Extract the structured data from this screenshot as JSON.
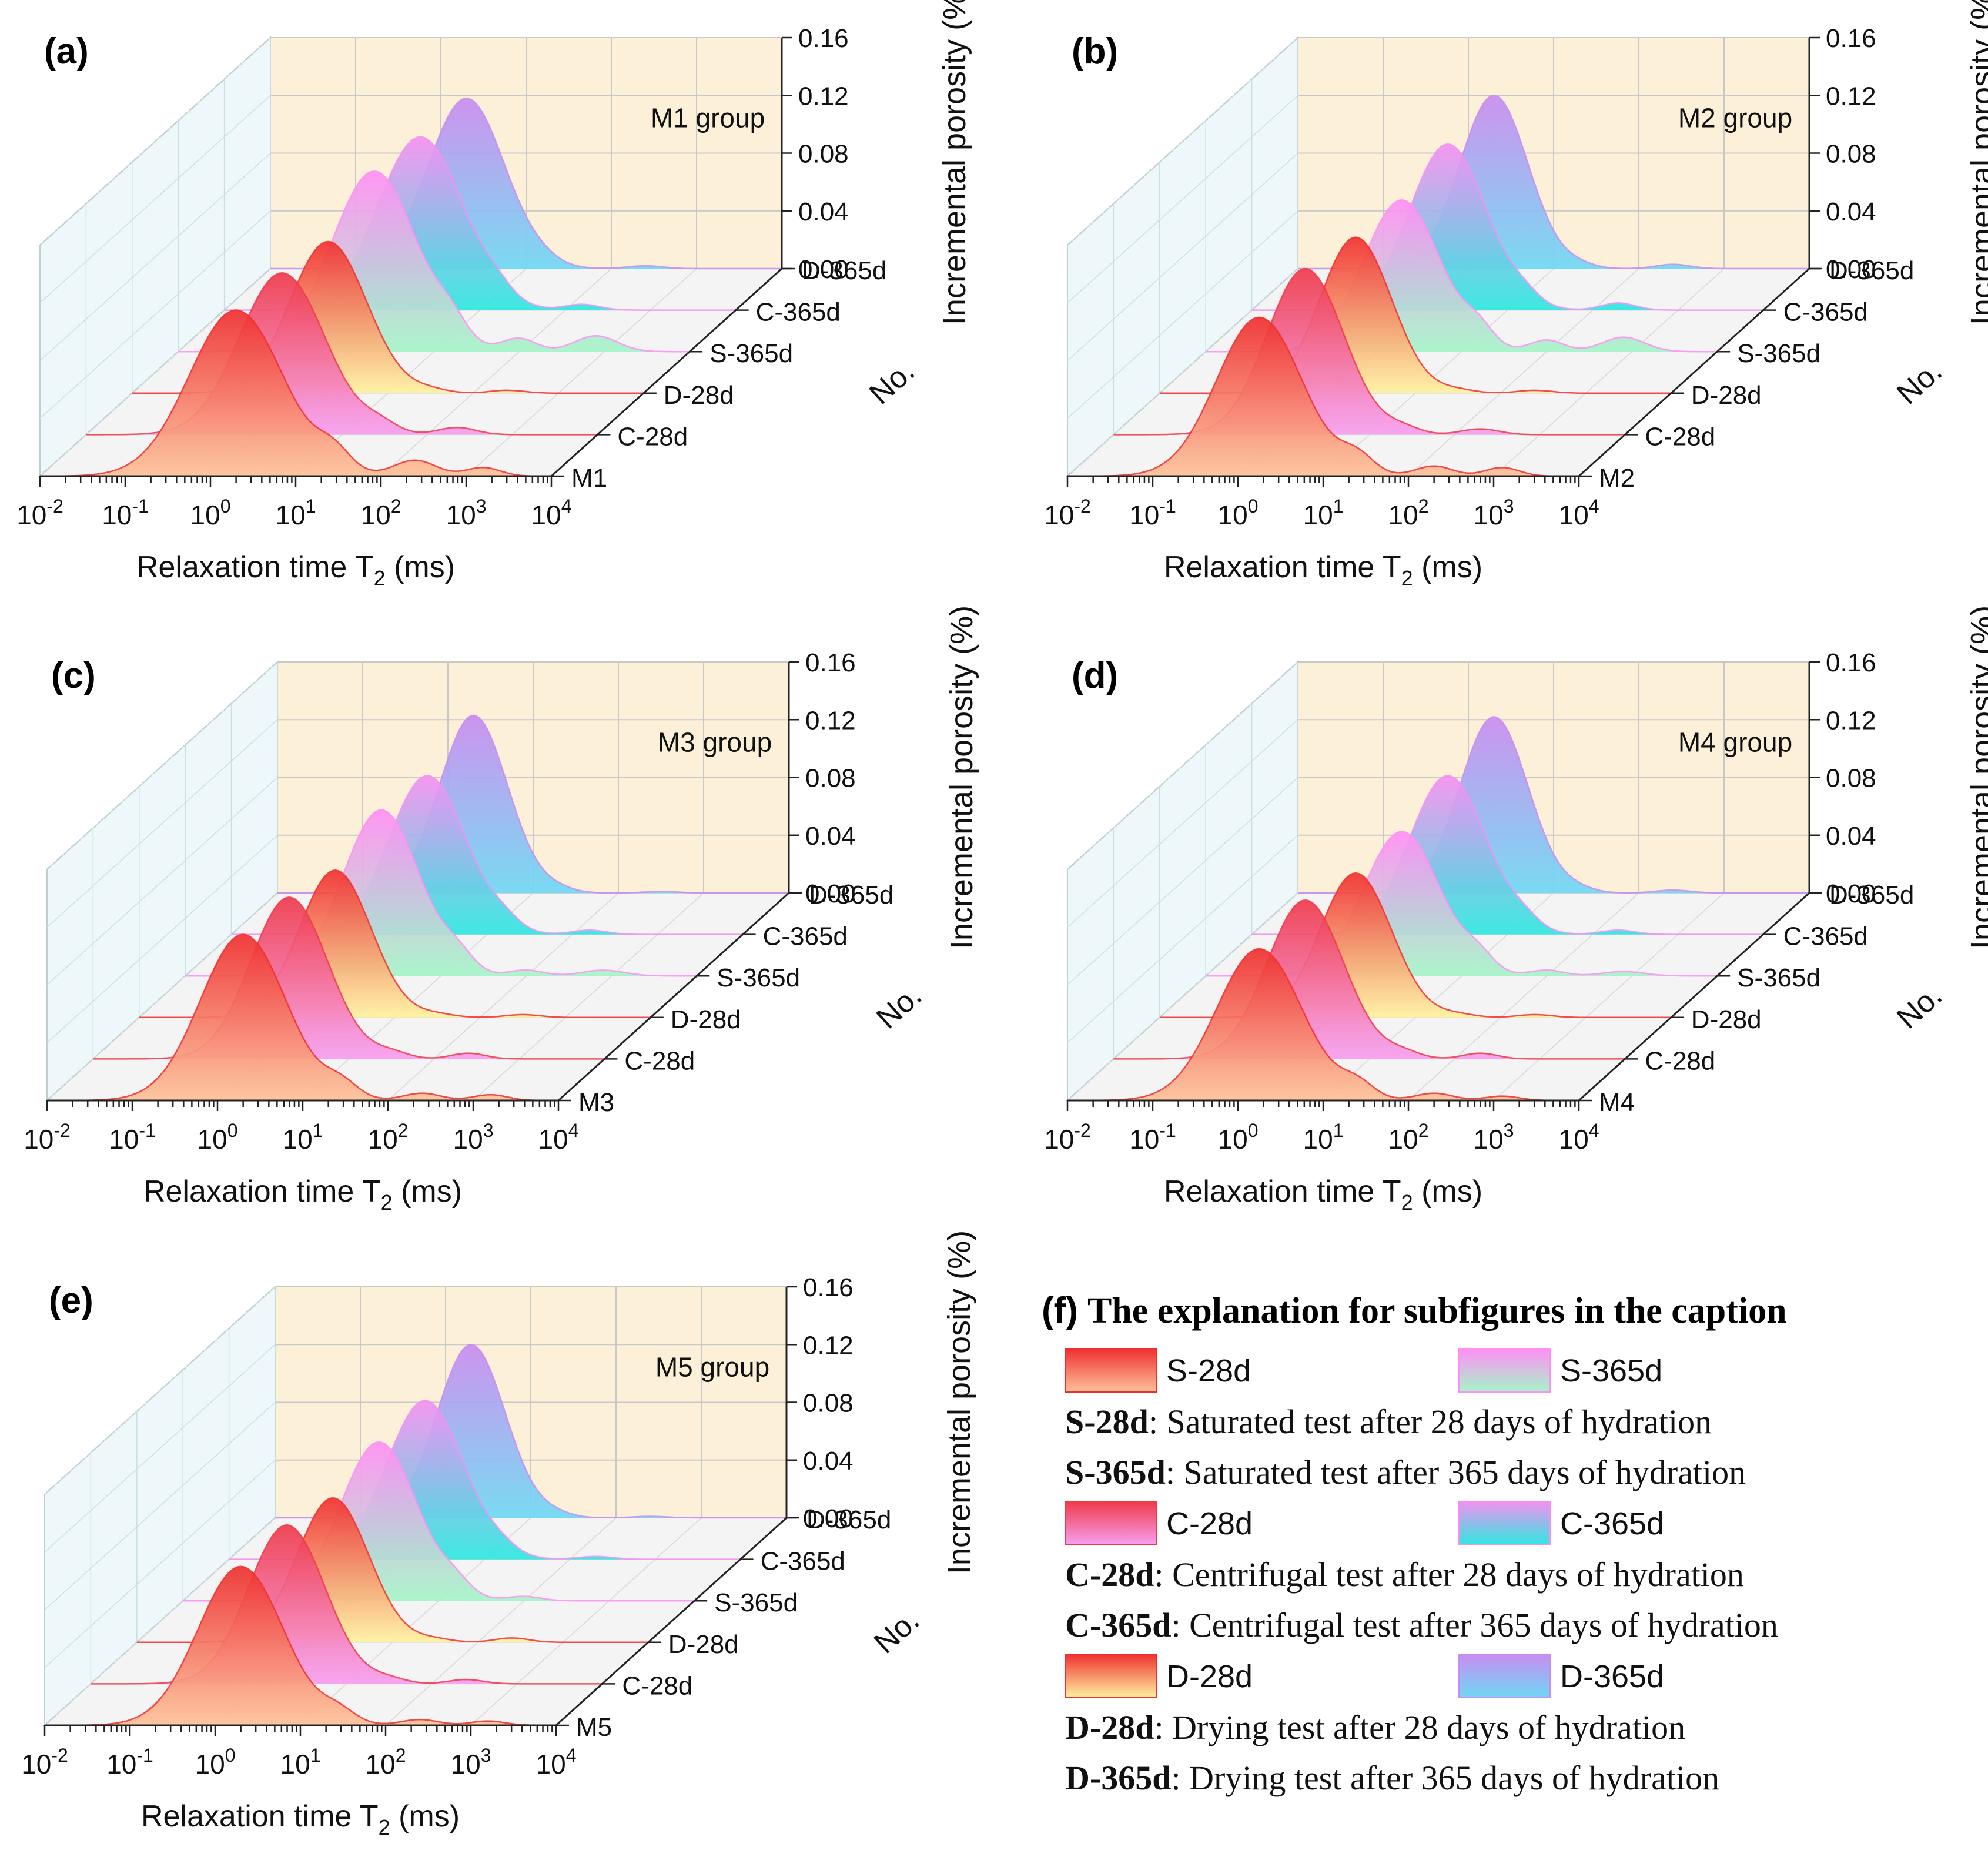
{
  "chart_data": [
    {
      "type": "3d-waterfall",
      "panel_label": "(a)",
      "group_label": "M1 group",
      "xlabel_main": "Relaxation time T",
      "xlabel_sub": "2",
      "xlabel_unit": " (ms)",
      "ylabel": "Incremental porosity (%)",
      "depth_label": "No.",
      "x_ticks": [
        {
          "b": "10",
          "e": "-2"
        },
        {
          "b": "10",
          "e": "-1"
        },
        {
          "b": "10",
          "e": "0"
        },
        {
          "b": "10",
          "e": "1"
        },
        {
          "b": "10",
          "e": "2"
        },
        {
          "b": "10",
          "e": "3"
        },
        {
          "b": "10",
          "e": "4"
        }
      ],
      "xlim_log10": [
        -2,
        4
      ],
      "y_ticks": [
        "0.00",
        "0.04",
        "0.08",
        "0.12",
        "0.16"
      ],
      "ylim": [
        0,
        0.16
      ],
      "depth_ticks": [
        "M1",
        "C-28d",
        "D-28d",
        "S-365d",
        "C-365d",
        "D-365d"
      ],
      "series": [
        {
          "name": "S-28d",
          "peaks": [
            [
              0.3,
              0.55,
              0.115
            ],
            [
              1.45,
              0.2,
              0.013
            ],
            [
              2.4,
              0.25,
              0.011
            ],
            [
              3.2,
              0.2,
              0.006
            ]
          ]
        },
        {
          "name": "C-28d",
          "peaks": [
            [
              0.3,
              0.5,
              0.112
            ],
            [
              1.45,
              0.2,
              0.006
            ],
            [
              2.35,
              0.22,
              0.005
            ]
          ]
        },
        {
          "name": "D-28d",
          "peaks": [
            [
              0.3,
              0.45,
              0.105
            ],
            [
              1.5,
              0.2,
              0.002
            ],
            [
              2.4,
              0.2,
              0.002
            ]
          ]
        },
        {
          "name": "S-365d",
          "peaks": [
            [
              0.3,
              0.5,
              0.125
            ],
            [
              1.2,
              0.18,
              0.012
            ],
            [
              2.0,
              0.2,
              0.009
            ],
            [
              2.9,
              0.25,
              0.011
            ]
          ]
        },
        {
          "name": "C-365d",
          "peaks": [
            [
              0.3,
              0.5,
              0.12
            ],
            [
              1.2,
              0.18,
              0.006
            ],
            [
              2.2,
              0.2,
              0.004
            ]
          ]
        },
        {
          "name": "D-365d",
          "peaks": [
            [
              0.3,
              0.45,
              0.118
            ],
            [
              1.2,
              0.18,
              0.002
            ],
            [
              2.4,
              0.2,
              0.002
            ]
          ]
        }
      ]
    },
    {
      "type": "3d-waterfall",
      "panel_label": "(b)",
      "group_label": "M2 group",
      "xlabel_main": "Relaxation time T",
      "xlabel_sub": "2",
      "xlabel_unit": " (ms)",
      "ylabel": "Incremental porosity (%)",
      "depth_label": "No.",
      "x_ticks": [
        {
          "b": "10",
          "e": "-2"
        },
        {
          "b": "10",
          "e": "-1"
        },
        {
          "b": "10",
          "e": "0"
        },
        {
          "b": "10",
          "e": "1"
        },
        {
          "b": "10",
          "e": "2"
        },
        {
          "b": "10",
          "e": "3"
        },
        {
          "b": "10",
          "e": "4"
        }
      ],
      "xlim_log10": [
        -2,
        4
      ],
      "y_ticks": [
        "0.00",
        "0.04",
        "0.08",
        "0.12",
        "0.16"
      ],
      "ylim": [
        0,
        0.16
      ],
      "depth_ticks": [
        "M2",
        "C-28d",
        "D-28d",
        "S-365d",
        "C-365d",
        "D-365d"
      ],
      "series": [
        {
          "name": "S-28d",
          "peaks": [
            [
              0.25,
              0.5,
              0.11
            ],
            [
              1.4,
              0.2,
              0.012
            ],
            [
              2.3,
              0.22,
              0.007
            ],
            [
              3.1,
              0.2,
              0.006
            ]
          ]
        },
        {
          "name": "C-28d",
          "peaks": [
            [
              0.25,
              0.45,
              0.115
            ],
            [
              1.4,
              0.2,
              0.004
            ],
            [
              2.3,
              0.22,
              0.004
            ]
          ]
        },
        {
          "name": "D-28d",
          "peaks": [
            [
              0.3,
              0.42,
              0.108
            ],
            [
              1.5,
              0.2,
              0.002
            ],
            [
              2.4,
              0.2,
              0.002
            ]
          ]
        },
        {
          "name": "S-365d",
          "peaks": [
            [
              0.3,
              0.45,
              0.105
            ],
            [
              1.2,
              0.18,
              0.012
            ],
            [
              2.0,
              0.2,
              0.008
            ],
            [
              2.9,
              0.25,
              0.01
            ]
          ]
        },
        {
          "name": "C-365d",
          "peaks": [
            [
              0.3,
              0.45,
              0.115
            ],
            [
              1.2,
              0.18,
              0.006
            ],
            [
              2.3,
              0.2,
              0.005
            ]
          ]
        },
        {
          "name": "D-365d",
          "peaks": [
            [
              0.3,
              0.4,
              0.12
            ],
            [
              1.3,
              0.18,
              0.002
            ],
            [
              2.4,
              0.2,
              0.003
            ]
          ]
        }
      ]
    },
    {
      "type": "3d-waterfall",
      "panel_label": "(c)",
      "group_label": "M3 group",
      "xlabel_main": "Relaxation time T",
      "xlabel_sub": "2",
      "xlabel_unit": " (ms)",
      "ylabel": "Incremental porosity (%)",
      "depth_label": "No.",
      "x_ticks": [
        {
          "b": "10",
          "e": "-2"
        },
        {
          "b": "10",
          "e": "-1"
        },
        {
          "b": "10",
          "e": "0"
        },
        {
          "b": "10",
          "e": "1"
        },
        {
          "b": "10",
          "e": "2"
        },
        {
          "b": "10",
          "e": "3"
        },
        {
          "b": "10",
          "e": "4"
        }
      ],
      "xlim_log10": [
        -2,
        4
      ],
      "y_ticks": [
        "0.00",
        "0.04",
        "0.08",
        "0.12",
        "0.16"
      ],
      "ylim": [
        0,
        0.16
      ],
      "depth_ticks": [
        "M3",
        "C-28d",
        "D-28d",
        "S-365d",
        "C-365d",
        "D-365d"
      ],
      "series": [
        {
          "name": "S-28d",
          "peaks": [
            [
              0.3,
              0.5,
              0.115
            ],
            [
              1.45,
              0.2,
              0.01
            ],
            [
              2.4,
              0.22,
              0.005
            ],
            [
              3.2,
              0.2,
              0.004
            ]
          ]
        },
        {
          "name": "C-28d",
          "peaks": [
            [
              0.3,
              0.45,
              0.112
            ],
            [
              1.5,
              0.2,
              0.004
            ],
            [
              2.4,
              0.2,
              0.004
            ]
          ]
        },
        {
          "name": "D-28d",
          "peaks": [
            [
              0.3,
              0.42,
              0.102
            ],
            [
              1.5,
              0.2,
              0.002
            ],
            [
              2.5,
              0.2,
              0.002
            ]
          ]
        },
        {
          "name": "S-365d",
          "peaks": [
            [
              0.3,
              0.45,
              0.115
            ],
            [
              1.2,
              0.18,
              0.01
            ],
            [
              2.0,
              0.2,
              0.004
            ],
            [
              2.9,
              0.25,
              0.004
            ]
          ]
        },
        {
          "name": "C-365d",
          "peaks": [
            [
              0.3,
              0.45,
              0.11
            ],
            [
              1.2,
              0.18,
              0.006
            ],
            [
              2.2,
              0.2,
              0.003
            ]
          ]
        },
        {
          "name": "D-365d",
          "peaks": [
            [
              0.3,
              0.4,
              0.123
            ],
            [
              1.3,
              0.18,
              0.002
            ],
            [
              2.5,
              0.2,
              0.001
            ]
          ]
        }
      ]
    },
    {
      "type": "3d-waterfall",
      "panel_label": "(d)",
      "group_label": "M4 group",
      "xlabel_main": "Relaxation time T",
      "xlabel_sub": "2",
      "xlabel_unit": " (ms)",
      "ylabel": "Incremental porosity (%)",
      "depth_label": "No.",
      "x_ticks": [
        {
          "b": "10",
          "e": "-2"
        },
        {
          "b": "10",
          "e": "-1"
        },
        {
          "b": "10",
          "e": "0"
        },
        {
          "b": "10",
          "e": "1"
        },
        {
          "b": "10",
          "e": "2"
        },
        {
          "b": "10",
          "e": "3"
        },
        {
          "b": "10",
          "e": "4"
        }
      ],
      "xlim_log10": [
        -2,
        4
      ],
      "y_ticks": [
        "0.00",
        "0.04",
        "0.08",
        "0.12",
        "0.16"
      ],
      "ylim": [
        0,
        0.16
      ],
      "depth_ticks": [
        "M4",
        "C-28d",
        "D-28d",
        "S-365d",
        "C-365d",
        "D-365d"
      ],
      "series": [
        {
          "name": "S-28d",
          "peaks": [
            [
              0.25,
              0.5,
              0.105
            ],
            [
              1.4,
              0.2,
              0.01
            ],
            [
              2.3,
              0.22,
              0.005
            ],
            [
              3.1,
              0.2,
              0.003
            ]
          ]
        },
        {
          "name": "C-28d",
          "peaks": [
            [
              0.25,
              0.45,
              0.11
            ],
            [
              1.4,
              0.2,
              0.004
            ],
            [
              2.3,
              0.2,
              0.004
            ]
          ]
        },
        {
          "name": "D-28d",
          "peaks": [
            [
              0.3,
              0.42,
              0.1
            ],
            [
              1.5,
              0.2,
              0.002
            ],
            [
              2.4,
              0.2,
              0.002
            ]
          ]
        },
        {
          "name": "S-365d",
          "peaks": [
            [
              0.3,
              0.45,
              0.1
            ],
            [
              1.2,
              0.18,
              0.01
            ],
            [
              2.0,
              0.2,
              0.004
            ],
            [
              2.9,
              0.25,
              0.003
            ]
          ]
        },
        {
          "name": "C-365d",
          "peaks": [
            [
              0.3,
              0.45,
              0.11
            ],
            [
              1.2,
              0.18,
              0.006
            ],
            [
              2.3,
              0.2,
              0.003
            ]
          ]
        },
        {
          "name": "D-365d",
          "peaks": [
            [
              0.3,
              0.4,
              0.122
            ],
            [
              1.3,
              0.18,
              0.002
            ],
            [
              2.4,
              0.2,
              0.002
            ]
          ]
        }
      ]
    },
    {
      "type": "3d-waterfall",
      "panel_label": "(e)",
      "group_label": "M5 group",
      "xlabel_main": "Relaxation time T",
      "xlabel_sub": "2",
      "xlabel_unit": " (ms)",
      "ylabel": "Incremental porosity (%)",
      "depth_label": "No.",
      "x_ticks": [
        {
          "b": "10",
          "e": "-2"
        },
        {
          "b": "10",
          "e": "-1"
        },
        {
          "b": "10",
          "e": "0"
        },
        {
          "b": "10",
          "e": "1"
        },
        {
          "b": "10",
          "e": "2"
        },
        {
          "b": "10",
          "e": "3"
        },
        {
          "b": "10",
          "e": "4"
        }
      ],
      "xlim_log10": [
        -2,
        4
      ],
      "y_ticks": [
        "0.00",
        "0.04",
        "0.08",
        "0.12",
        "0.16"
      ],
      "ylim": [
        0,
        0.16
      ],
      "depth_ticks": [
        "M5",
        "C-28d",
        "D-28d",
        "S-365d",
        "C-365d",
        "D-365d"
      ],
      "series": [
        {
          "name": "S-28d",
          "peaks": [
            [
              0.3,
              0.5,
              0.11
            ],
            [
              1.45,
              0.2,
              0.008
            ],
            [
              2.4,
              0.22,
              0.004
            ],
            [
              3.2,
              0.2,
              0.003
            ]
          ]
        },
        {
          "name": "C-28d",
          "peaks": [
            [
              0.3,
              0.45,
              0.11
            ],
            [
              1.5,
              0.2,
              0.003
            ],
            [
              2.4,
              0.2,
              0.003
            ]
          ]
        },
        {
          "name": "D-28d",
          "peaks": [
            [
              0.3,
              0.42,
              0.1
            ],
            [
              1.5,
              0.2,
              0.002
            ],
            [
              2.4,
              0.2,
              0.003
            ]
          ]
        },
        {
          "name": "S-365d",
          "peaks": [
            [
              0.3,
              0.45,
              0.11
            ],
            [
              1.2,
              0.18,
              0.008
            ],
            [
              2.0,
              0.2,
              0.003
            ]
          ]
        },
        {
          "name": "C-365d",
          "peaks": [
            [
              0.3,
              0.45,
              0.11
            ],
            [
              1.2,
              0.18,
              0.004
            ],
            [
              2.3,
              0.2,
              0.002
            ]
          ]
        },
        {
          "name": "D-365d",
          "peaks": [
            [
              0.3,
              0.4,
              0.12
            ],
            [
              1.3,
              0.18,
              0.002
            ],
            [
              2.4,
              0.2,
              0.001
            ]
          ]
        }
      ]
    }
  ],
  "explanation": {
    "label": "(f)",
    "title": "The explanation for subfigures in the caption",
    "rows": [
      {
        "type": "swatch",
        "items": [
          {
            "key": "S28",
            "label": "S-28d"
          },
          {
            "key": "S365",
            "label": "S-365d"
          }
        ]
      },
      {
        "type": "text",
        "bold": "S-28d",
        "rest": ": Saturated test after 28 days of hydration"
      },
      {
        "type": "text",
        "bold": "S-365d",
        "rest": ": Saturated test after 365 days of hydration"
      },
      {
        "type": "swatch",
        "items": [
          {
            "key": "C28",
            "label": "C-28d"
          },
          {
            "key": "C365",
            "label": "C-365d"
          }
        ]
      },
      {
        "type": "text",
        "bold": "C-28d",
        "rest": ": Centrifugal test after 28 days of hydration"
      },
      {
        "type": "text",
        "bold": "C-365d",
        "rest": ": Centrifugal test after 365 days of hydration"
      },
      {
        "type": "swatch",
        "items": [
          {
            "key": "D28",
            "label": "D-28d"
          },
          {
            "key": "D365",
            "label": "D-365d"
          }
        ]
      },
      {
        "type": "text",
        "bold": "D-28d",
        "rest": ": Drying test after 28 days of hydration"
      },
      {
        "type": "text",
        "bold": "D-365d",
        "rest": ": Drying test after 365 days of hydration"
      }
    ]
  },
  "colors": {
    "back_wall": "#fcf1d8",
    "side_wall": "#eef8fa",
    "floor": "#f4f4f4",
    "grid": "#c8c8c8",
    "axis": "#222222",
    "S28": [
      "#ef2f2f",
      "#fdc29a"
    ],
    "C28": [
      "#ef3a4a",
      "#f79ff0"
    ],
    "D28": [
      "#f03030",
      "#fff2a0"
    ],
    "S365": [
      "#ff8ff5",
      "#a5f5c8"
    ],
    "C365": [
      "#f590f2",
      "#2ee8e0"
    ],
    "D365": [
      "#c98cf0",
      "#6ed8f5"
    ]
  }
}
